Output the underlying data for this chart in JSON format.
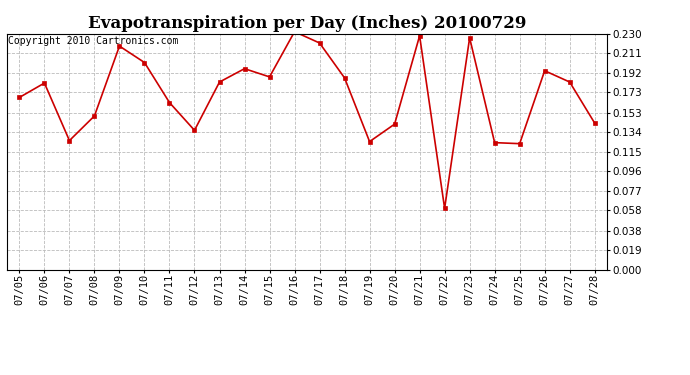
{
  "title": "Evapotranspiration per Day (Inches) 20100729",
  "copyright": "Copyright 2010 Cartronics.com",
  "dates": [
    "07/05",
    "07/06",
    "07/07",
    "07/08",
    "07/09",
    "07/10",
    "07/11",
    "07/12",
    "07/13",
    "07/14",
    "07/15",
    "07/16",
    "07/17",
    "07/18",
    "07/19",
    "07/20",
    "07/21",
    "07/22",
    "07/23",
    "07/24",
    "07/25",
    "07/26",
    "07/27",
    "07/28"
  ],
  "values": [
    0.168,
    0.182,
    0.126,
    0.15,
    0.218,
    0.202,
    0.163,
    0.136,
    0.183,
    0.196,
    0.188,
    0.232,
    0.221,
    0.187,
    0.125,
    0.142,
    0.228,
    0.06,
    0.226,
    0.124,
    0.123,
    0.194,
    0.183,
    0.143
  ],
  "ylim": [
    0.0,
    0.23
  ],
  "yticks": [
    0.0,
    0.019,
    0.038,
    0.058,
    0.077,
    0.096,
    0.115,
    0.134,
    0.153,
    0.173,
    0.192,
    0.211,
    0.23
  ],
  "line_color": "#cc0000",
  "marker": "s",
  "marker_size": 3,
  "background_color": "#ffffff",
  "plot_bg_color": "#ffffff",
  "grid_color": "#bbbbbb",
  "title_fontsize": 12,
  "tick_fontsize": 7.5,
  "copyright_fontsize": 7
}
